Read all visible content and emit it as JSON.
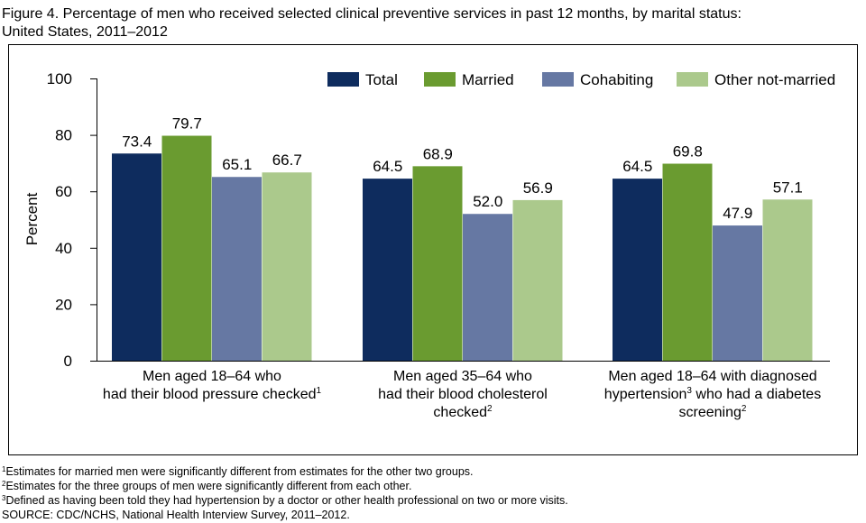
{
  "title_lines": [
    "Figure 4. Percentage of men who received selected clinical preventive services in past 12 months, by marital status:",
    "United States, 2011–2012"
  ],
  "colors": {
    "Total": "#0e2c5e",
    "Married": "#6a9b30",
    "Cohabiting": "#6678a3",
    "Other not-married": "#abc98c"
  },
  "chart_data": {
    "type": "bar",
    "ylabel": "Percent",
    "ylim": [
      0,
      100
    ],
    "yticks": [
      "0",
      "20",
      "40",
      "60",
      "80",
      "100"
    ],
    "legend_position": "top-right",
    "grid": false,
    "categories": [
      [
        [
          {
            "t": "Men aged 18–64 who"
          }
        ],
        [
          {
            "t": "had their blood pressure checked"
          },
          {
            "sup": "1"
          }
        ]
      ],
      [
        [
          {
            "t": "Men aged 35–64 who"
          }
        ],
        [
          {
            "t": "had their blood cholesterol"
          }
        ],
        [
          {
            "t": "checked"
          },
          {
            "sup": "2"
          }
        ]
      ],
      [
        [
          {
            "t": "Men aged 18–64 with diagnosed"
          }
        ],
        [
          {
            "t": "hypertension"
          },
          {
            "sup": "3"
          },
          {
            "t": " who had a diabetes"
          }
        ],
        [
          {
            "t": "screening"
          },
          {
            "sup": "2"
          }
        ]
      ]
    ],
    "series": [
      {
        "name": "Total",
        "values": [
          73.4,
          64.5,
          64.5
        ],
        "labels": [
          "73.4",
          "64.5",
          "64.5"
        ]
      },
      {
        "name": "Married",
        "values": [
          79.7,
          68.9,
          69.8
        ],
        "labels": [
          "79.7",
          "68.9",
          "69.8"
        ]
      },
      {
        "name": "Cohabiting",
        "values": [
          65.1,
          52.0,
          47.9
        ],
        "labels": [
          "65.1",
          "52.0",
          "47.9"
        ]
      },
      {
        "name": "Other not-married",
        "values": [
          66.7,
          56.9,
          57.1
        ],
        "labels": [
          "66.7",
          "56.9",
          "57.1"
        ]
      }
    ]
  },
  "footnotes": [
    {
      "sup": "1",
      "text": "Estimates for married men were significantly different from estimates for the other two groups."
    },
    {
      "sup": "2",
      "text": "Estimates for the three groups of men were significantly different from each other."
    },
    {
      "sup": "3",
      "text": "Defined as having been told they had hypertension by a doctor or other health professional on two or more visits."
    }
  ],
  "source": "SOURCE: CDC/NCHS, National Health Interview Survey, 2011–2012."
}
